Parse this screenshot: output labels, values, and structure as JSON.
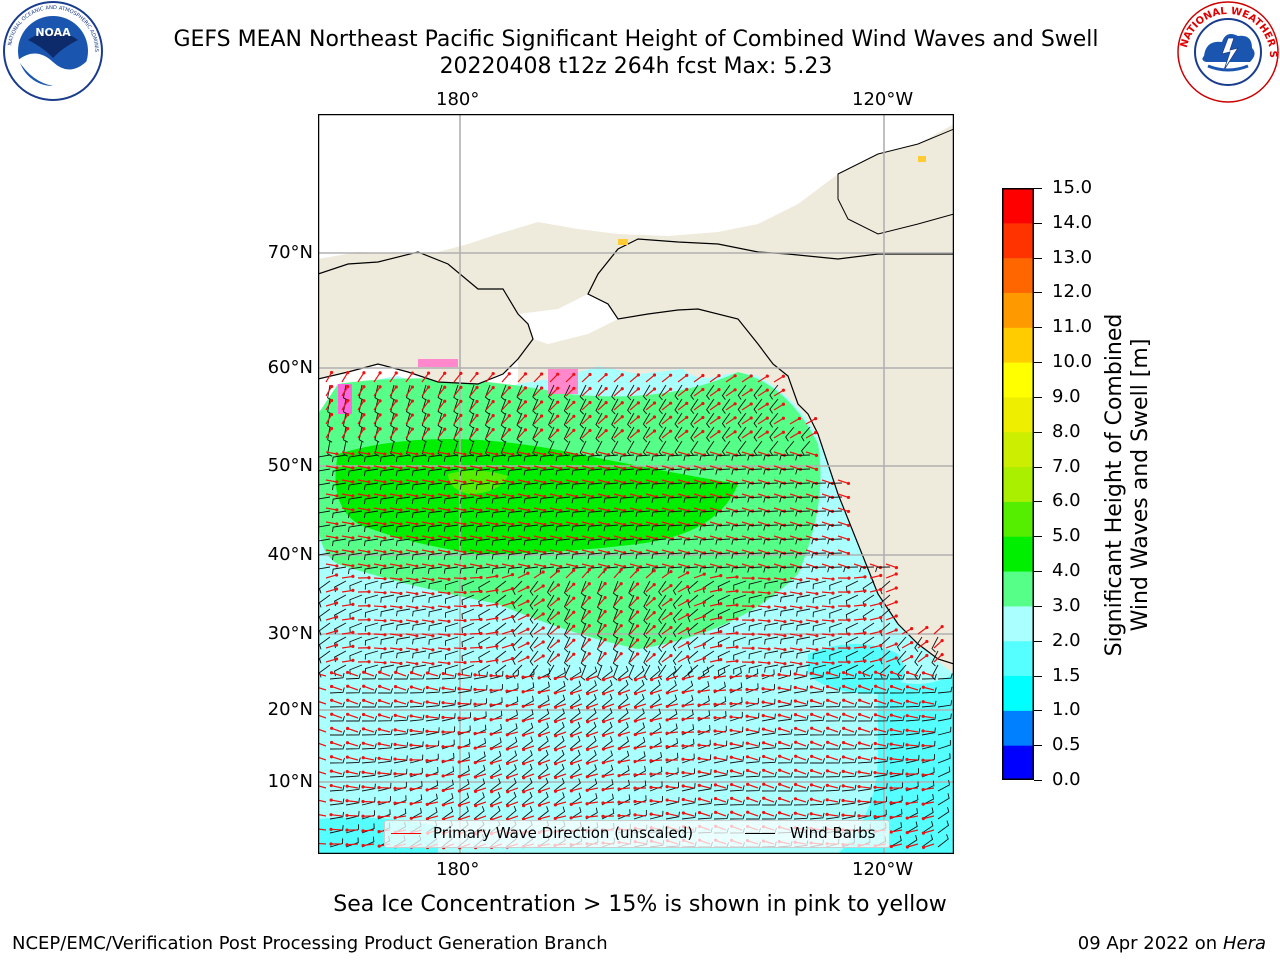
{
  "header": {
    "title_line1": "GEFS MEAN Northeast Pacific Significant Height of Combined Wind Waves and Swell",
    "title_line2": "20220408 t12z 264h fcst   Max: 5.23"
  },
  "logos": {
    "noaa": {
      "icon": "noaa-logo",
      "text": "NOAA",
      "ring_text": "NATIONAL OCEANIC AND ATMOSPHERIC ADMINISTRATION · U.S. DEPARTMENT OF COMMERCE"
    },
    "nws": {
      "icon": "nws-logo",
      "ring_text": "NATIONAL WEATHER SERVICE"
    }
  },
  "map": {
    "projection": "Mercator",
    "lon_ticks": [
      "180°",
      "120°W"
    ],
    "lat_ticks": [
      "70°N",
      "60°N",
      "50°N",
      "40°N",
      "30°N",
      "20°N",
      "10°N"
    ],
    "land_color": "#efebdc",
    "grid": true,
    "legend": {
      "placement": "lower-center",
      "items": [
        {
          "label": "Primary Wave Direction (unscaled)",
          "color": "#ff0000"
        },
        {
          "label": "Wind Barbs",
          "color": "#000000"
        }
      ]
    },
    "wave_field_colors": {
      "light": "#aaffff",
      "medium": "#55ff88",
      "high": "#00dd00",
      "peak": "#88dd00",
      "cyan": "#55ffff"
    }
  },
  "colorbar": {
    "label_line1": "Significant Height of Combined",
    "label_line2": "Wind Waves and Swell [m]",
    "tick_labels": [
      "0.0",
      "0.5",
      "1.0",
      "1.5",
      "2.0",
      "3.0",
      "4.0",
      "5.0",
      "6.0",
      "7.0",
      "8.0",
      "9.0",
      "10.0",
      "11.0",
      "12.0",
      "13.0",
      "14.0",
      "15.0"
    ],
    "colors": [
      "#0000ff",
      "#0080ff",
      "#00ffff",
      "#55ffff",
      "#aaffff",
      "#55ff88",
      "#00ee00",
      "#55ee00",
      "#aaee00",
      "#ccee00",
      "#eeee00",
      "#ffff00",
      "#ffcc00",
      "#ff9900",
      "#ff6600",
      "#ff3300",
      "#ff0000"
    ]
  },
  "footer": {
    "sea_ice_note": "Sea Ice Concentration > 15% is shown in pink to yellow",
    "left": "NCEP/EMC/Verification Post Processing Product Generation Branch",
    "right_date": "09 Apr 2022 on ",
    "right_host": "Hera"
  }
}
